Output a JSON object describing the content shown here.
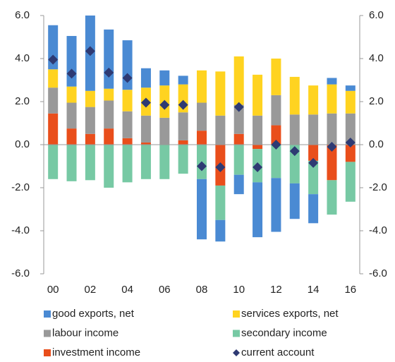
{
  "chart_data": {
    "type": "bar",
    "categories": [
      "00",
      null,
      "02",
      null,
      "04",
      null,
      "06",
      null,
      "08",
      null,
      "10",
      null,
      "12",
      null,
      "14",
      null,
      "16"
    ],
    "series": [
      {
        "name": "good exports, net",
        "color": "#4a8ad3",
        "values": [
          2.05,
          2.35,
          3.5,
          2.75,
          2.3,
          0.9,
          0.7,
          0.4,
          -2.8,
          -1.0,
          -0.9,
          -2.55,
          -2.5,
          -1.65,
          -1.35,
          0.3,
          0.25
        ]
      },
      {
        "name": "services exports, net",
        "color": "#ffd320",
        "values": [
          0.85,
          0.75,
          0.75,
          0.55,
          1.0,
          1.3,
          1.5,
          1.3,
          1.5,
          2.05,
          2.25,
          1.9,
          1.7,
          1.75,
          1.35,
          1.35,
          1.05
        ]
      },
      {
        "name": "labour income",
        "color": "#999999",
        "values": [
          1.2,
          1.2,
          1.25,
          1.3,
          1.25,
          1.25,
          1.25,
          1.3,
          1.3,
          1.35,
          1.35,
          1.35,
          1.4,
          1.4,
          1.4,
          1.45,
          1.45
        ]
      },
      {
        "name": "secondary income",
        "color": "#77c9a4",
        "values": [
          -1.6,
          -1.7,
          -1.65,
          -2.0,
          -1.75,
          -1.6,
          -1.6,
          -1.35,
          -1.6,
          -1.6,
          -1.4,
          -1.55,
          -1.55,
          -1.8,
          -1.55,
          -1.6,
          -1.85
        ]
      },
      {
        "name": "investment income",
        "color": "#e94e1b",
        "values": [
          1.45,
          0.75,
          0.5,
          0.75,
          0.3,
          0.1,
          0.0,
          0.2,
          0.65,
          -1.9,
          0.5,
          -0.2,
          0.9,
          0.0,
          -0.75,
          -1.65,
          -0.8
        ]
      },
      {
        "name": "current account",
        "type": "scatter",
        "color": "#2e3a73",
        "values": [
          3.95,
          3.3,
          4.35,
          3.35,
          3.1,
          1.95,
          1.85,
          1.85,
          -1.0,
          -1.05,
          1.75,
          -1.05,
          0.0,
          -0.3,
          -0.85,
          -0.1,
          0.1
        ]
      }
    ],
    "ylim": [
      -6,
      6
    ],
    "yticks": [
      {
        "value": -6,
        "label": "-6.0"
      },
      {
        "value": -4,
        "label": "-4.0"
      },
      {
        "value": -2,
        "label": "-2.0"
      },
      {
        "value": 0,
        "label": "0.0"
      },
      {
        "value": 2,
        "label": "2.0"
      },
      {
        "value": 4,
        "label": "4.0"
      },
      {
        "value": 6,
        "label": "6.0"
      }
    ],
    "y2lim": [
      -6,
      6
    ],
    "y2ticks": [
      {
        "value": -6,
        "label": "-6.0"
      },
      {
        "value": -4,
        "label": "-4.0"
      },
      {
        "value": -2,
        "label": "-2.0"
      },
      {
        "value": 0,
        "label": "0.0"
      },
      {
        "value": 2,
        "label": "2.0"
      },
      {
        "value": 4,
        "label": "4.0"
      },
      {
        "value": 6,
        "label": "6.0"
      }
    ]
  }
}
